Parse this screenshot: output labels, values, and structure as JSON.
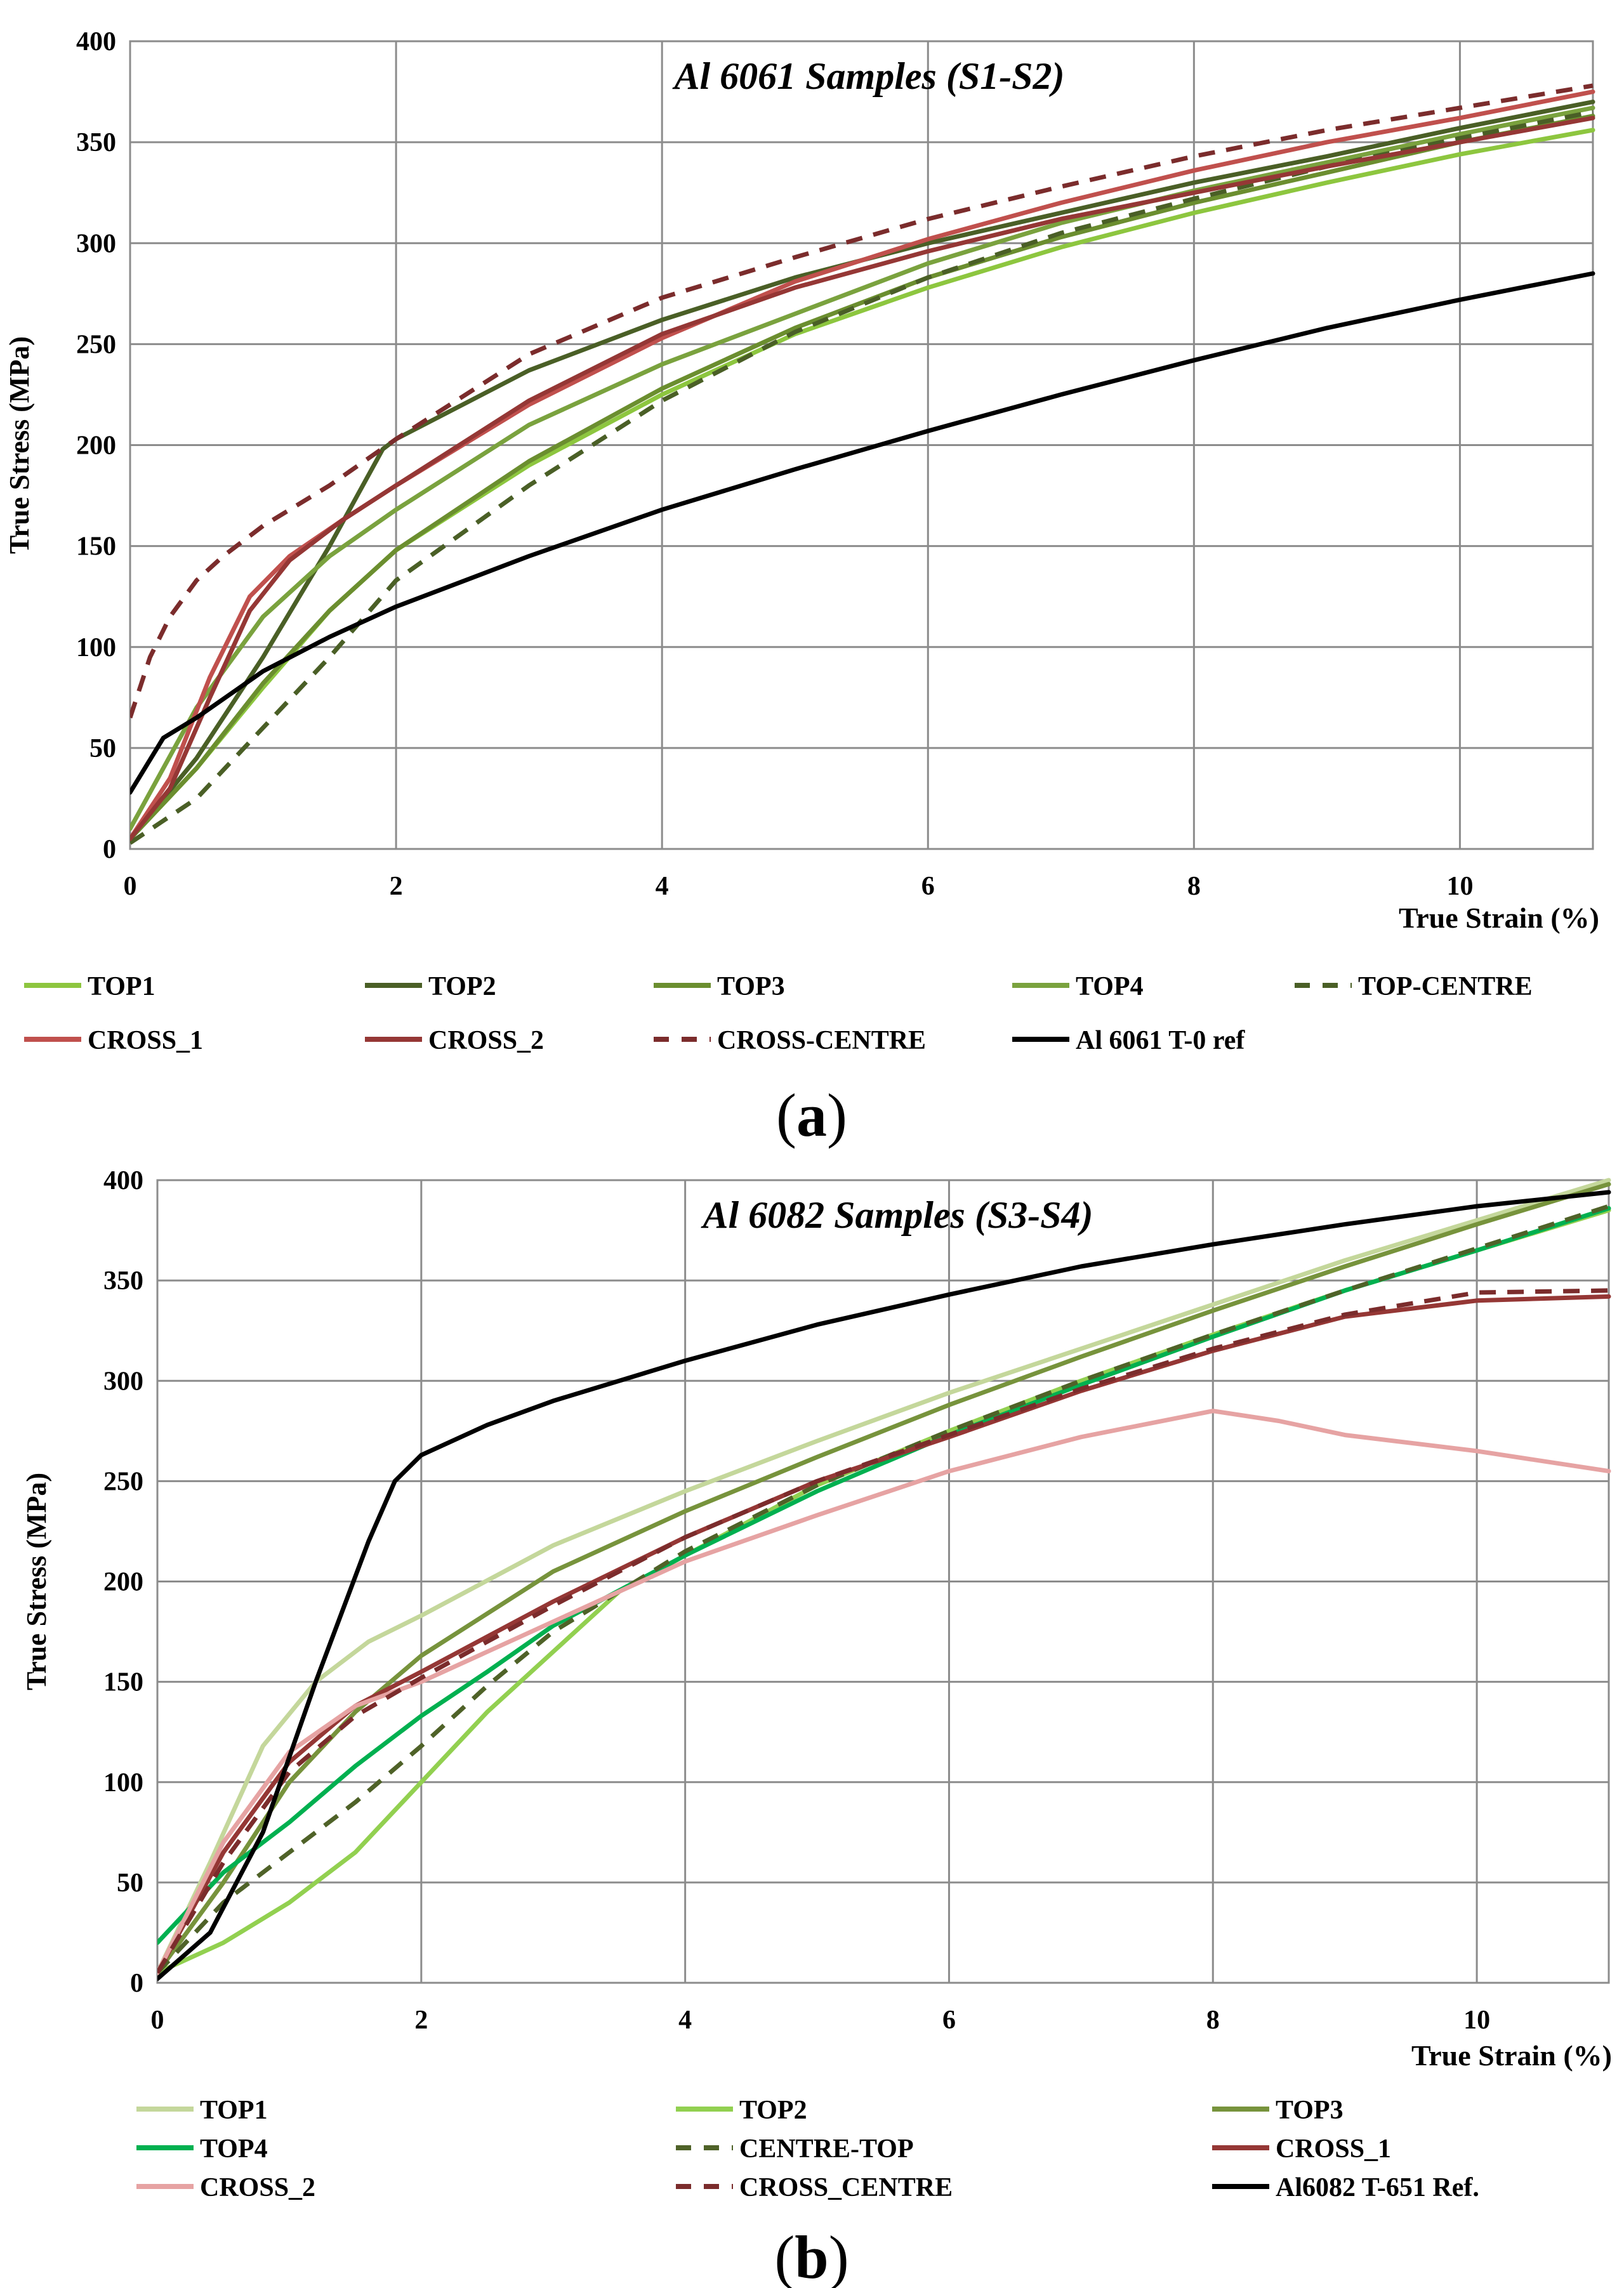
{
  "chart_data": [
    {
      "type": "line",
      "panel_label": "a",
      "title": "Al 6061 Samples (S1-S2)",
      "xlabel": "True  Strain (%)",
      "ylabel": "True  Stress (MPa)",
      "xlim": [
        0,
        11
      ],
      "ylim": [
        0,
        400
      ],
      "xticks": [
        0,
        2,
        4,
        6,
        8,
        10
      ],
      "yticks": [
        0,
        50,
        100,
        150,
        200,
        250,
        300,
        350,
        400
      ],
      "grid": true,
      "legend_position": "bottom",
      "series": [
        {
          "name": "TOP1",
          "color": "#8dc63f",
          "style": "solid",
          "x": [
            0,
            0.5,
            1,
            1.5,
            2,
            3,
            4,
            5,
            6,
            7,
            8,
            9,
            10,
            11
          ],
          "y": [
            5,
            40,
            80,
            118,
            148,
            190,
            225,
            255,
            278,
            298,
            315,
            330,
            344,
            356
          ]
        },
        {
          "name": "TOP2",
          "color": "#4a5f26",
          "style": "solid",
          "x": [
            0,
            0.5,
            1,
            1.5,
            1.9,
            2,
            3,
            4,
            5,
            6,
            7,
            8,
            9,
            10,
            11
          ],
          "y": [
            5,
            45,
            95,
            150,
            198,
            203,
            237,
            262,
            283,
            300,
            315,
            330,
            343,
            357,
            370
          ]
        },
        {
          "name": "TOP3",
          "color": "#6b8e2f",
          "style": "solid",
          "x": [
            0,
            0.5,
            1,
            1.5,
            2,
            3,
            4,
            5,
            6,
            7,
            8,
            9,
            10,
            11
          ],
          "y": [
            5,
            40,
            82,
            118,
            148,
            192,
            228,
            258,
            283,
            303,
            320,
            335,
            350,
            363
          ]
        },
        {
          "name": "TOP4",
          "color": "#7aa23e",
          "style": "solid",
          "x": [
            0,
            0.5,
            1,
            1.5,
            2,
            3,
            4,
            5,
            6,
            7,
            8,
            9,
            10,
            11
          ],
          "y": [
            10,
            70,
            115,
            145,
            168,
            210,
            240,
            265,
            290,
            310,
            326,
            340,
            354,
            367
          ]
        },
        {
          "name": "TOP-CENTRE",
          "color": "#4a5f26",
          "style": "dashed",
          "x": [
            0,
            0.5,
            1,
            1.5,
            2,
            3,
            4,
            5,
            6,
            7,
            8,
            9,
            10,
            11
          ],
          "y": [
            3,
            25,
            60,
            95,
            133,
            180,
            222,
            256,
            283,
            305,
            322,
            338,
            352,
            365
          ]
        },
        {
          "name": "CROSS_1",
          "color": "#c0504d",
          "style": "solid",
          "x": [
            0,
            0.3,
            0.6,
            0.9,
            1.2,
            1.6,
            2,
            3,
            4,
            5,
            6,
            7,
            8,
            9,
            10,
            11
          ],
          "y": [
            5,
            35,
            85,
            125,
            145,
            163,
            180,
            220,
            253,
            281,
            302,
            320,
            336,
            350,
            362,
            375
          ]
        },
        {
          "name": "CROSS_2",
          "color": "#953735",
          "style": "solid",
          "x": [
            0,
            0.3,
            0.6,
            0.9,
            1.2,
            1.6,
            2,
            3,
            4,
            5,
            6,
            7,
            8,
            9,
            10,
            11
          ],
          "y": [
            5,
            30,
            75,
            118,
            143,
            163,
            180,
            222,
            255,
            278,
            296,
            312,
            325,
            338,
            350,
            362
          ]
        },
        {
          "name": "CROSS-CENTRE",
          "color": "#7b2c2c",
          "style": "dashed",
          "x": [
            0,
            0.15,
            0.3,
            0.5,
            0.7,
            1,
            1.5,
            2,
            3,
            4,
            5,
            6,
            7,
            8,
            9,
            10,
            11
          ],
          "y": [
            65,
            95,
            115,
            133,
            145,
            160,
            180,
            203,
            245,
            273,
            293,
            312,
            328,
            343,
            356,
            367,
            378
          ]
        },
        {
          "name": "Al 6061 T-0 ref",
          "color": "#000000",
          "style": "solid",
          "x": [
            0,
            0.25,
            0.5,
            1,
            1.5,
            2,
            3,
            4,
            5,
            6,
            7,
            8,
            9,
            10,
            11
          ],
          "y": [
            28,
            55,
            65,
            88,
            105,
            120,
            145,
            168,
            188,
            207,
            225,
            242,
            258,
            272,
            285
          ]
        }
      ]
    },
    {
      "type": "line",
      "panel_label": "b",
      "title": "Al 6082 Samples (S3-S4)",
      "xlabel": "True  Strain (%)",
      "ylabel": "True  Stress (MPa)",
      "xlim": [
        0,
        11
      ],
      "ylim": [
        0,
        400
      ],
      "xticks": [
        0,
        2,
        4,
        6,
        8,
        10
      ],
      "yticks": [
        0,
        50,
        100,
        150,
        200,
        250,
        300,
        350,
        400
      ],
      "grid": true,
      "legend_position": "bottom",
      "series": [
        {
          "name": "TOP1",
          "color": "#c4d79b",
          "style": "solid",
          "x": [
            0,
            0.4,
            0.8,
            1.2,
            1.6,
            2,
            3,
            4,
            5,
            6,
            7,
            8,
            9,
            10,
            11
          ],
          "y": [
            5,
            60,
            118,
            150,
            170,
            183,
            218,
            245,
            270,
            294,
            316,
            338,
            360,
            380,
            400
          ]
        },
        {
          "name": "TOP2",
          "color": "#92d050",
          "style": "solid",
          "x": [
            0,
            0.5,
            1,
            1.5,
            2,
            2.5,
            3,
            3.5,
            4,
            5,
            6,
            7,
            8,
            9,
            10,
            11
          ],
          "y": [
            5,
            20,
            40,
            65,
            100,
            135,
            165,
            195,
            213,
            248,
            275,
            300,
            323,
            345,
            365,
            385
          ]
        },
        {
          "name": "TOP3",
          "color": "#77933c",
          "style": "solid",
          "x": [
            0,
            0.5,
            1,
            1.5,
            2,
            3,
            4,
            5,
            6,
            7,
            8,
            9,
            10,
            11
          ],
          "y": [
            5,
            50,
            100,
            135,
            163,
            205,
            235,
            262,
            288,
            312,
            335,
            357,
            378,
            398
          ]
        },
        {
          "name": "TOP4",
          "color": "#00b050",
          "style": "solid",
          "x": [
            0,
            0.5,
            1,
            1.5,
            2,
            2.5,
            3,
            4,
            5,
            6,
            7,
            8,
            9,
            10,
            11
          ],
          "y": [
            20,
            55,
            80,
            108,
            133,
            155,
            178,
            213,
            245,
            273,
            298,
            322,
            345,
            365,
            386
          ]
        },
        {
          "name": "CENTRE-TOP",
          "color": "#4f6228",
          "style": "dashed",
          "x": [
            0,
            0.5,
            1,
            1.5,
            2,
            2.5,
            3,
            4,
            5,
            6,
            7,
            8,
            9,
            10,
            11
          ],
          "y": [
            5,
            40,
            65,
            90,
            118,
            148,
            175,
            215,
            248,
            275,
            300,
            323,
            345,
            366,
            387
          ]
        },
        {
          "name": "CROSS_1",
          "color": "#953735",
          "style": "solid",
          "x": [
            0,
            0.5,
            1,
            1.5,
            2,
            3,
            4,
            5,
            6,
            7,
            8,
            9,
            10,
            11
          ],
          "y": [
            5,
            65,
            110,
            138,
            155,
            190,
            222,
            250,
            272,
            295,
            315,
            332,
            340,
            342
          ]
        },
        {
          "name": "CROSS_2",
          "color": "#e6a3a3",
          "style": "solid",
          "x": [
            0,
            0.5,
            1,
            1.5,
            2,
            3,
            4,
            5,
            6,
            7,
            8,
            8.5,
            9,
            10,
            11
          ],
          "y": [
            5,
            70,
            115,
            138,
            150,
            180,
            210,
            233,
            255,
            272,
            285,
            280,
            273,
            265,
            255
          ]
        },
        {
          "name": "CROSS_CENTRE",
          "color": "#7b2c2c",
          "style": "dashed",
          "x": [
            0,
            0.5,
            1,
            1.5,
            2,
            3,
            4,
            5,
            6,
            7,
            8,
            9,
            10,
            11
          ],
          "y": [
            5,
            60,
            105,
            133,
            152,
            188,
            222,
            250,
            273,
            296,
            316,
            333,
            344,
            345
          ]
        },
        {
          "name": "Al6082 T-651 Ref.",
          "color": "#000000",
          "style": "solid",
          "x": [
            0,
            0.4,
            0.8,
            1.2,
            1.6,
            1.8,
            2,
            2.5,
            3,
            4,
            5,
            6,
            7,
            8,
            9,
            10,
            11
          ],
          "y": [
            2,
            25,
            75,
            150,
            220,
            250,
            263,
            278,
            290,
            310,
            328,
            343,
            357,
            368,
            378,
            387,
            394
          ]
        }
      ]
    }
  ]
}
